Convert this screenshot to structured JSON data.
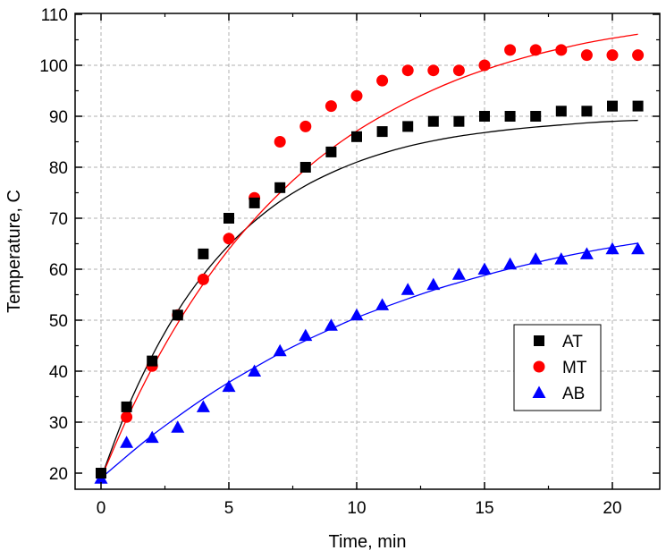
{
  "chart_data": {
    "type": "scatter",
    "title": "",
    "xlabel": "Time, min",
    "ylabel": "Temperature, C",
    "xlim": [
      -1,
      22
    ],
    "ylim": [
      18,
      110
    ],
    "xticks": [
      0,
      5,
      10,
      15,
      20
    ],
    "yticks": [
      20,
      30,
      40,
      50,
      60,
      70,
      80,
      90,
      100,
      110
    ],
    "grid": true,
    "legend_position": "right",
    "series": [
      {
        "name": "AT",
        "marker": "square",
        "color": "#000000",
        "x": [
          0,
          1,
          2,
          3,
          4,
          5,
          6,
          7,
          8,
          9,
          10,
          11,
          12,
          13,
          14,
          15,
          16,
          17,
          18,
          19,
          20,
          21
        ],
        "values": [
          20,
          33,
          42,
          51,
          63,
          70,
          73,
          76,
          80,
          83,
          86,
          87,
          88,
          89,
          89,
          90,
          90,
          90,
          91,
          91,
          92,
          92
        ],
        "fit": {
          "x": [
            0,
            1,
            2,
            3,
            4,
            5,
            6,
            7,
            8,
            9,
            10,
            11,
            12,
            13,
            14,
            15,
            16,
            17,
            18,
            19,
            20,
            21
          ],
          "values": [
            19,
            32.3,
            43,
            51.8,
            58.9,
            64.7,
            69.4,
            73.3,
            76.4,
            78.9,
            81,
            82.7,
            84.1,
            85.2,
            86.1,
            86.8,
            87.4,
            87.9,
            88.3,
            88.7,
            89,
            89.2
          ]
        }
      },
      {
        "name": "MT",
        "marker": "circle",
        "color": "#ff0000",
        "x": [
          1,
          2,
          3,
          4,
          5,
          6,
          7,
          8,
          9,
          10,
          11,
          12,
          13,
          14,
          15,
          16,
          17,
          18,
          19,
          20,
          21
        ],
        "values": [
          31,
          41,
          51,
          58,
          66,
          74,
          85,
          88,
          92,
          94,
          97,
          99,
          99,
          99,
          100,
          103,
          103,
          103,
          102,
          102,
          102
        ],
        "fit": {
          "x": [
            0,
            1,
            2,
            3,
            4,
            5,
            6,
            7,
            8,
            9,
            10,
            11,
            12,
            13,
            14,
            15,
            16,
            17,
            18,
            19,
            20,
            21
          ],
          "values": [
            19,
            30.5,
            40.6,
            49.4,
            57.1,
            63.9,
            69.8,
            75,
            79.6,
            83.6,
            87.1,
            90.1,
            92.8,
            95.2,
            97.3,
            99.1,
            100.7,
            102.1,
            103.3,
            104.4,
            105.3,
            106.1
          ]
        }
      },
      {
        "name": "AB",
        "marker": "triangle",
        "color": "#0000ff",
        "x": [
          0,
          1,
          2,
          3,
          4,
          5,
          6,
          7,
          8,
          9,
          10,
          11,
          12,
          13,
          14,
          15,
          16,
          17,
          18,
          19,
          20,
          21
        ],
        "values": [
          19,
          26,
          27,
          29,
          33,
          37,
          40,
          44,
          47,
          49,
          51,
          53,
          56,
          57,
          59,
          60,
          61,
          62,
          62,
          63,
          64,
          64
        ],
        "fit": {
          "x": [
            0,
            1,
            2,
            3,
            4,
            5,
            6,
            7,
            8,
            9,
            10,
            11,
            12,
            13,
            14,
            15,
            16,
            17,
            18,
            19,
            20,
            21
          ],
          "values": [
            19,
            23.3,
            27.4,
            31.1,
            34.6,
            37.8,
            40.7,
            43.5,
            46,
            48.3,
            50.5,
            52.4,
            54.2,
            55.9,
            57.4,
            58.8,
            60.1,
            61.3,
            62.4,
            63.4,
            64.3,
            65.1
          ]
        }
      }
    ]
  }
}
